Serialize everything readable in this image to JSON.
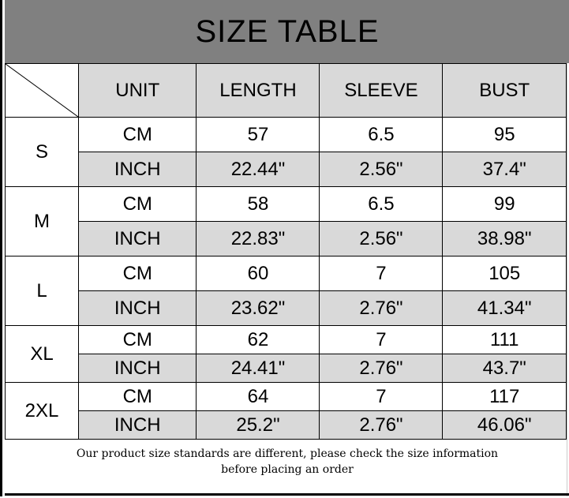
{
  "title": "SIZE TABLE",
  "headers": [
    "UNIT",
    "LENGTH",
    "SLEEVE",
    "BUST"
  ],
  "sizes": [
    {
      "size": "S",
      "cm": [
        "CM",
        "57",
        "6.5",
        "95"
      ],
      "inch": [
        "INCH",
        "22.44\"",
        "2.56\"",
        "37.4\""
      ]
    },
    {
      "size": "M",
      "cm": [
        "CM",
        "58",
        "6.5",
        "99"
      ],
      "inch": [
        "INCH",
        "22.83\"",
        "2.56\"",
        "38.98\""
      ]
    },
    {
      "size": "L",
      "cm": [
        "CM",
        "60",
        "7",
        "105"
      ],
      "inch": [
        "INCH",
        "23.62\"",
        "2.76\"",
        "41.34\""
      ]
    },
    {
      "size": "XL",
      "cm": [
        "CM",
        "62",
        "7",
        "111"
      ],
      "inch": [
        "INCH",
        "24.41\"",
        "2.76\"",
        "43.7\""
      ]
    },
    {
      "size": "2XL",
      "cm": [
        "CM",
        "64",
        "7",
        "117"
      ],
      "inch": [
        "INCH",
        "25.2\"",
        "2.76\"",
        "46.06\""
      ]
    }
  ],
  "footer": {
    "line1": "Our product size standards are different, please check the size information",
    "line2": "before placing an order"
  }
}
